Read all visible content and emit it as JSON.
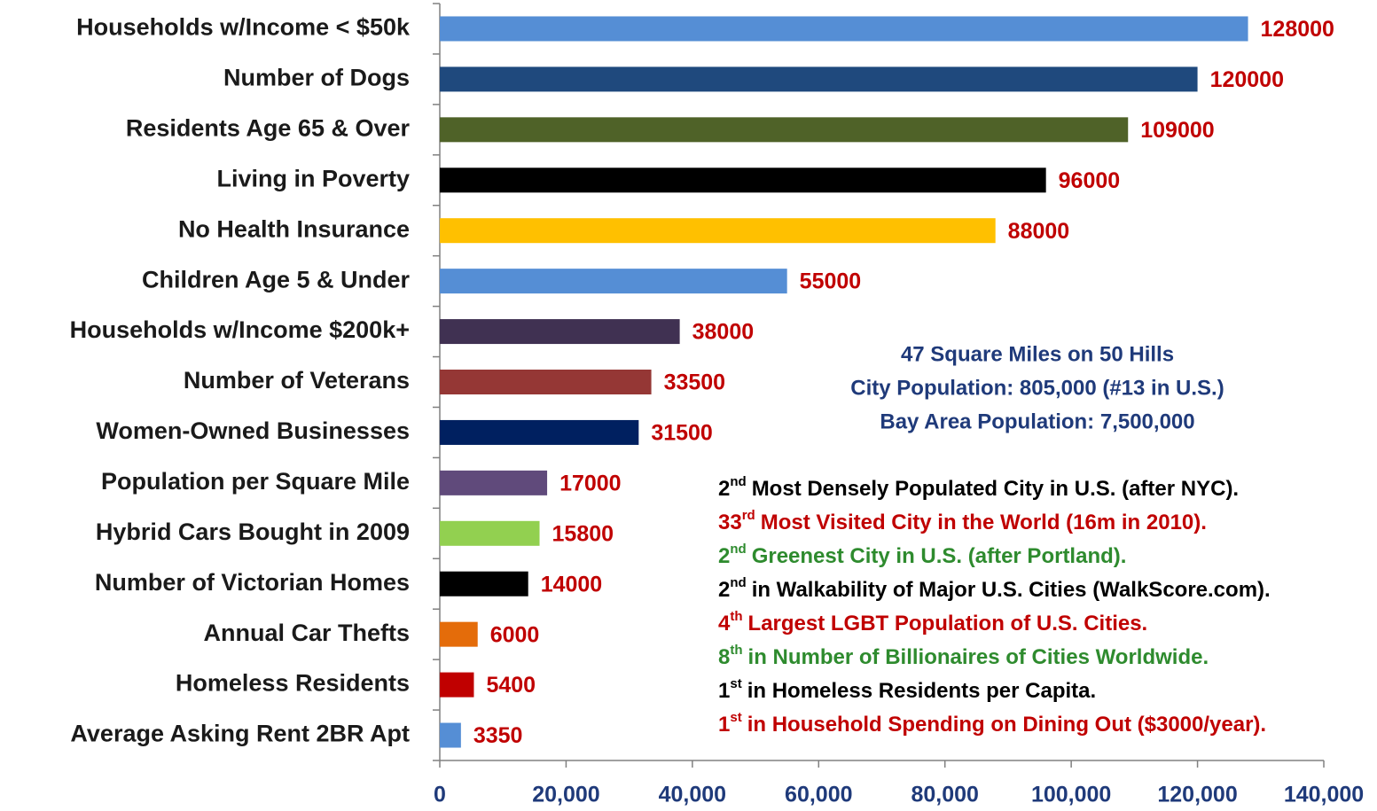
{
  "chart_data": {
    "type": "bar",
    "orientation": "horizontal",
    "categories": [
      "Households w/Income < $50k",
      "Number of Dogs",
      "Residents Age 65 & Over",
      "Living in Poverty",
      "No Health Insurance",
      "Children Age 5 & Under",
      "Households w/Income $200k+",
      "Number of Veterans",
      "Women-Owned Businesses",
      "Population per Square Mile",
      "Hybrid Cars Bought in 2009",
      "Number of Victorian Homes",
      "Annual Car Thefts",
      "Homeless Residents",
      "Average Asking Rent 2BR Apt"
    ],
    "values": [
      128000,
      120000,
      109000,
      96000,
      88000,
      55000,
      38000,
      33500,
      31500,
      17000,
      15800,
      14000,
      6000,
      5400,
      3350
    ],
    "colors": [
      "#558ed5",
      "#1f497d",
      "#4f6228",
      "#000000",
      "#ffc000",
      "#558ed5",
      "#403152",
      "#953735",
      "#002060",
      "#604a7b",
      "#92d050",
      "#000000",
      "#e46c0a",
      "#c00000",
      "#558ed5"
    ],
    "value_label_color": "#c00000",
    "xlim": [
      0,
      140000
    ],
    "xticks": [
      0,
      {
        "value": 20000,
        "label": "20,000"
      },
      {
        "value": 40000,
        "label": "40,000"
      },
      {
        "value": 60000,
        "label": "60,000"
      },
      {
        "value": 80000,
        "label": "80,000"
      },
      {
        "value": 100000,
        "label": "100,000"
      },
      {
        "value": 120000,
        "label": "120,000"
      },
      {
        "value": 140000,
        "label": "140,000"
      }
    ],
    "grid": false,
    "info": {
      "color": "#1f3a7a",
      "lines": [
        "47 Square Miles on 50 Hills",
        "City Population: 805,000 (#13 in U.S.)",
        "Bay Area Population: 7,500,000"
      ]
    },
    "facts": [
      {
        "rank": "2",
        "suffix": "nd",
        "text": "Most Densely Populated City in U.S. (after NYC).",
        "color": "#000000"
      },
      {
        "rank": "33",
        "suffix": "rd",
        "text": "Most Visited City in the World (16m in 2010).",
        "color": "#c00000"
      },
      {
        "rank": "2",
        "suffix": "nd",
        "text": "Greenest City in U.S. (after Portland).",
        "color": "#2e8b2e"
      },
      {
        "rank": "2",
        "suffix": "nd",
        "text": "in Walkability of Major U.S. Cities (WalkScore.com).",
        "color": "#000000"
      },
      {
        "rank": "4",
        "suffix": "th",
        "text": "Largest LGBT Population of U.S. Cities.",
        "color": "#c00000"
      },
      {
        "rank": "8",
        "suffix": "th",
        "text": "in Number of Billionaires of Cities Worldwide.",
        "color": "#2e8b2e"
      },
      {
        "rank": "1",
        "suffix": "st",
        "text": "in Homeless Residents per Capita.",
        "color": "#000000"
      },
      {
        "rank": "1",
        "suffix": "st",
        "text": "in Household Spending on Dining Out ($3000/year).",
        "color": "#c00000"
      }
    ]
  }
}
